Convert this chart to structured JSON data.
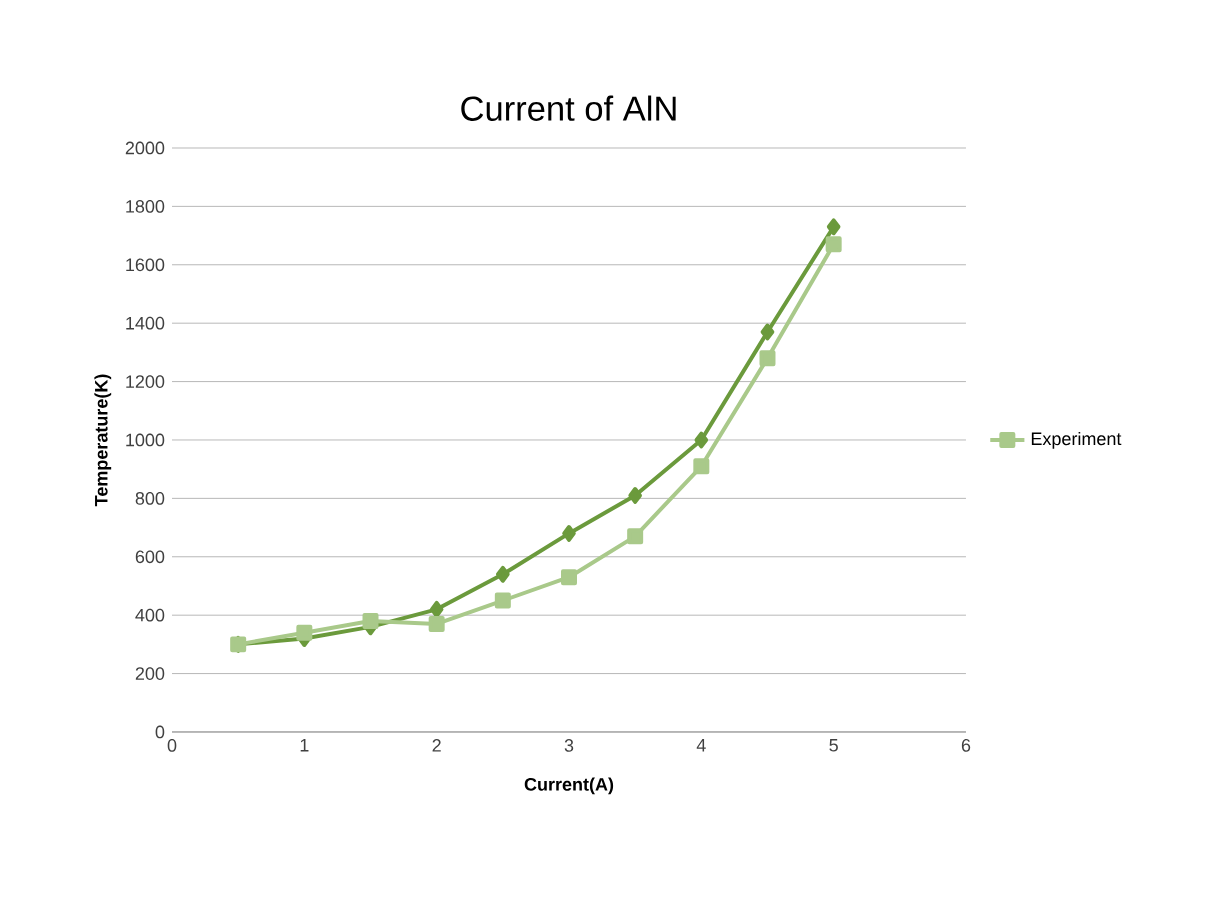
{
  "chart_data": {
    "type": "line",
    "title": "Current of AlN",
    "xlabel": "Current(A)",
    "ylabel": "Temperature(K)",
    "x": [
      0.5,
      1,
      1.5,
      2,
      2.5,
      3,
      3.5,
      4,
      4.5,
      5
    ],
    "series": [
      {
        "color": "#6b9a3c",
        "marker": "diamond",
        "values": [
          300,
          320,
          360,
          420,
          540,
          680,
          810,
          1000,
          1370,
          1730
        ]
      },
      {
        "name": "Experiment",
        "color": "#a9c98a",
        "marker": "square",
        "values": [
          300,
          340,
          380,
          370,
          450,
          530,
          670,
          910,
          1280,
          1670
        ]
      }
    ],
    "xlim": [
      0,
      6
    ],
    "xticks": [
      0,
      1,
      2,
      3,
      4,
      5,
      6
    ],
    "ylim": [
      0,
      2000
    ],
    "yticks": [
      0,
      200,
      400,
      600,
      800,
      1000,
      1200,
      1400,
      1600,
      1800,
      2000
    ],
    "grid": "y",
    "legend": "right"
  }
}
